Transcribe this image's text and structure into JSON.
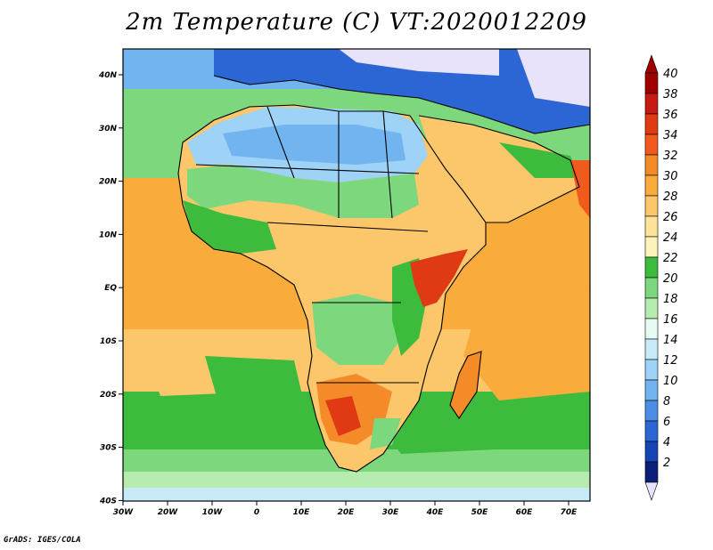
{
  "title": "2m Temperature (C) VT:2020012209",
  "footer": "GrADS: IGES/COLA",
  "map": {
    "lon_ticks": [
      "30W",
      "20W",
      "10W",
      "0",
      "10E",
      "20E",
      "30E",
      "40E",
      "50E",
      "60E",
      "70E"
    ],
    "lat_ticks": [
      "40N",
      "30N",
      "20N",
      "10N",
      "EQ",
      "10S",
      "20S",
      "30S",
      "40S"
    ],
    "lon_range": [
      -30,
      75
    ],
    "lat_range": [
      -40,
      45
    ]
  },
  "colorbar": {
    "labels": [
      "40",
      "38",
      "36",
      "34",
      "32",
      "30",
      "28",
      "26",
      "24",
      "22",
      "20",
      "18",
      "16",
      "14",
      "12",
      "10",
      "8",
      "6",
      "4",
      "2"
    ],
    "colors": [
      "#a00000",
      "#c81a12",
      "#e03a14",
      "#f05a1c",
      "#f58a28",
      "#f9ab3c",
      "#fbc76a",
      "#fde39a",
      "#fbf3b8",
      "#3dbb3d",
      "#7dd87d",
      "#b6ecb0",
      "#e6fbf4",
      "#c8eaf8",
      "#9ed2f6",
      "#72b4f0",
      "#4a8ee6",
      "#2c66d4",
      "#1744b4",
      "#0c1f78"
    ],
    "top_color": "#a00000",
    "bottom_color": "#e8e2fa"
  },
  "legend_colors": {
    "ocean_tropical": "#f9ab3c",
    "ocean_subtropical": "#fbc76a",
    "ocean_midlat": "#3dbb3d",
    "ocean_cool": "#b6ecb0",
    "sahara": "#9ed2f6",
    "europe": "#2c66d4",
    "hot_land": "#e03a14"
  }
}
